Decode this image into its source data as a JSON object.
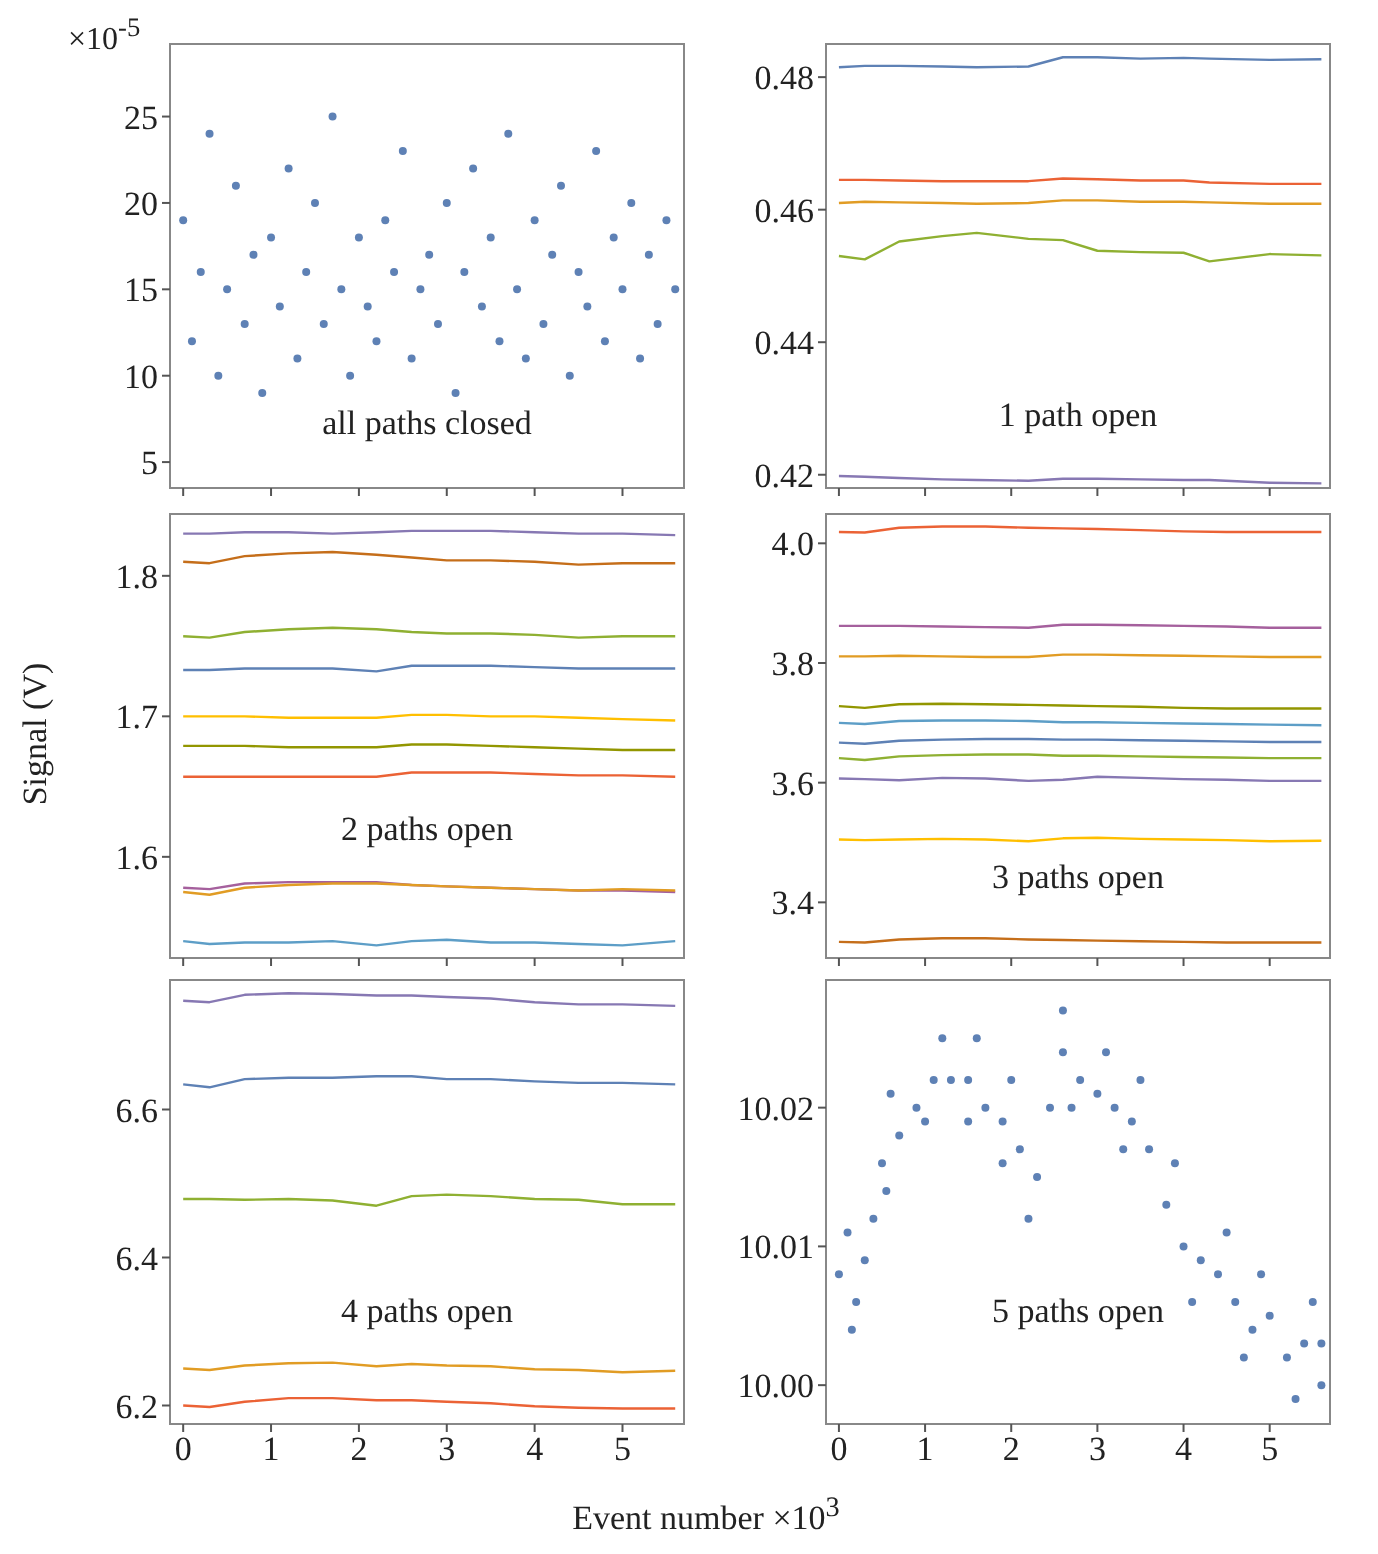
{
  "chart_data": [
    {
      "type": "scatter",
      "title": "all paths closed",
      "annotations": [
        "×10$^{-5}$"
      ],
      "marker": "circle",
      "xlim": [
        -0.15,
        5.7
      ],
      "xticks": [
        0,
        1,
        2,
        3,
        4,
        5
      ],
      "ylim": [
        3.5,
        29.2
      ],
      "yticks": [
        5,
        10,
        15,
        20,
        25
      ],
      "tick_labels": "y",
      "series": [
        {
          "color": "#5e81b5",
          "x": [
            0,
            0.1,
            0.2,
            0.3,
            0.4,
            0.5,
            0.6,
            0.7,
            0.8,
            0.9,
            1,
            1.1,
            1.2,
            1.3,
            1.4,
            1.5,
            1.6,
            1.7,
            1.8,
            1.9,
            2,
            2.1,
            2.2,
            2.3,
            2.4,
            2.5,
            2.6,
            2.7,
            2.8,
            2.9,
            3,
            3.1,
            3.2,
            3.3,
            3.4,
            3.5,
            3.6,
            3.7,
            3.8,
            3.9,
            4,
            4.1,
            4.2,
            4.3,
            4.4,
            4.5,
            4.6,
            4.7,
            4.8,
            4.9,
            5,
            5.1,
            5.2,
            5.3,
            5.4,
            5.5,
            5.6
          ],
          "values": [
            19,
            12,
            16,
            24,
            10,
            15,
            21,
            13,
            17,
            9,
            18,
            14,
            22,
            11,
            16,
            20,
            13,
            25,
            15,
            10,
            18,
            14,
            12,
            19,
            16,
            23,
            11,
            15,
            17,
            13,
            20,
            9,
            16,
            22,
            14,
            18,
            12,
            24,
            15,
            11,
            19,
            13,
            17,
            21,
            10,
            16,
            14,
            23,
            12,
            18,
            15,
            20,
            11,
            17,
            13,
            19,
            15
          ]
        }
      ]
    },
    {
      "type": "line",
      "title": "1 path open",
      "xlim": [
        -0.15,
        5.7
      ],
      "xticks": [
        0,
        1,
        2,
        3,
        4,
        5
      ],
      "ylim": [
        0.418,
        0.485
      ],
      "yticks": [
        0.42,
        0.44,
        0.46,
        0.48
      ],
      "tick_labels": "y",
      "line_style": "solid",
      "x": [
        0,
        0.3,
        0.7,
        1.2,
        1.6,
        2.2,
        2.6,
        3.0,
        3.5,
        4.0,
        4.3,
        5.0,
        5.6
      ],
      "series": [
        {
          "color": "#5e81b5",
          "values": [
            0.4815,
            0.4817,
            0.4817,
            0.4816,
            0.4815,
            0.4816,
            0.483,
            0.483,
            0.4828,
            0.4829,
            0.4828,
            0.4826,
            0.4827
          ]
        },
        {
          "color": "#eb6235",
          "values": [
            0.4645,
            0.4645,
            0.4644,
            0.4643,
            0.4643,
            0.4643,
            0.4647,
            0.4646,
            0.4644,
            0.4644,
            0.4641,
            0.4639,
            0.4639
          ]
        },
        {
          "color": "#e19c24",
          "values": [
            0.461,
            0.4612,
            0.4611,
            0.461,
            0.4609,
            0.461,
            0.4614,
            0.4614,
            0.4612,
            0.4612,
            0.4611,
            0.4609,
            0.4609
          ]
        },
        {
          "color": "#8fb032",
          "values": [
            0.453,
            0.4525,
            0.4552,
            0.456,
            0.4565,
            0.4556,
            0.4554,
            0.4538,
            0.4536,
            0.4535,
            0.4522,
            0.4533,
            0.4531
          ]
        },
        {
          "color": "#8778b3",
          "values": [
            0.4198,
            0.4197,
            0.4195,
            0.4193,
            0.4192,
            0.4191,
            0.4194,
            0.4194,
            0.4193,
            0.4192,
            0.4192,
            0.4188,
            0.4187
          ]
        }
      ]
    },
    {
      "type": "line",
      "title": "2 paths open",
      "ylabel": "Signal (V)",
      "xlim": [
        -0.15,
        5.7
      ],
      "xticks": [
        0,
        1,
        2,
        3,
        4,
        5
      ],
      "ylim": [
        1.528,
        1.844
      ],
      "yticks": [
        1.6,
        1.7,
        1.8
      ],
      "tick_labels": "y",
      "line_style": "solid",
      "x": [
        0,
        0.3,
        0.7,
        1.2,
        1.7,
        2.2,
        2.6,
        3.0,
        3.5,
        4.0,
        4.5,
        5.0,
        5.6
      ],
      "series": [
        {
          "color": "#8778b3",
          "values": [
            1.83,
            1.83,
            1.831,
            1.831,
            1.83,
            1.831,
            1.832,
            1.832,
            1.832,
            1.831,
            1.83,
            1.83,
            1.829
          ]
        },
        {
          "color": "#c56e1a",
          "values": [
            1.81,
            1.809,
            1.814,
            1.816,
            1.817,
            1.815,
            1.813,
            1.811,
            1.811,
            1.81,
            1.808,
            1.809,
            1.809
          ]
        },
        {
          "color": "#8fb032",
          "values": [
            1.757,
            1.756,
            1.76,
            1.762,
            1.763,
            1.762,
            1.76,
            1.759,
            1.759,
            1.758,
            1.756,
            1.757,
            1.757
          ]
        },
        {
          "color": "#5e81b5",
          "values": [
            1.733,
            1.733,
            1.734,
            1.734,
            1.734,
            1.732,
            1.736,
            1.736,
            1.736,
            1.735,
            1.734,
            1.734,
            1.734
          ]
        },
        {
          "color": "#ffbf00",
          "values": [
            1.7,
            1.7,
            1.7,
            1.699,
            1.699,
            1.699,
            1.701,
            1.701,
            1.7,
            1.7,
            1.699,
            1.698,
            1.697
          ]
        },
        {
          "color": "#929600",
          "values": [
            1.679,
            1.679,
            1.679,
            1.678,
            1.678,
            1.678,
            1.68,
            1.68,
            1.679,
            1.678,
            1.677,
            1.676,
            1.676
          ]
        },
        {
          "color": "#eb6235",
          "values": [
            1.657,
            1.657,
            1.657,
            1.657,
            1.657,
            1.657,
            1.66,
            1.66,
            1.66,
            1.659,
            1.658,
            1.658,
            1.657
          ]
        },
        {
          "color": "#a5609d",
          "values": [
            1.578,
            1.577,
            1.581,
            1.582,
            1.582,
            1.582,
            1.58,
            1.579,
            1.578,
            1.577,
            1.576,
            1.576,
            1.575
          ]
        },
        {
          "color": "#e19c24",
          "values": [
            1.575,
            1.573,
            1.578,
            1.58,
            1.581,
            1.581,
            1.58,
            1.579,
            1.578,
            1.577,
            1.576,
            1.577,
            1.576
          ]
        },
        {
          "color": "#5d9ec7",
          "values": [
            1.54,
            1.538,
            1.539,
            1.539,
            1.54,
            1.537,
            1.54,
            1.541,
            1.539,
            1.539,
            1.538,
            1.537,
            1.54
          ]
        }
      ]
    },
    {
      "type": "line",
      "title": "3 paths open",
      "xlim": [
        -0.15,
        5.7
      ],
      "xticks": [
        0,
        1,
        2,
        3,
        4,
        5
      ],
      "ylim": [
        3.307,
        4.049
      ],
      "yticks": [
        3.4,
        3.6,
        3.8,
        {
          "value": 4,
          "label": "4.0"
        }
      ],
      "tick_labels": "y",
      "line_style": "solid",
      "x": [
        0,
        0.3,
        0.7,
        1.2,
        1.7,
        2.2,
        2.6,
        3.0,
        3.5,
        4.0,
        4.5,
        5.0,
        5.6
      ],
      "series": [
        {
          "color": "#eb6235",
          "values": [
            4.019,
            4.018,
            4.026,
            4.028,
            4.028,
            4.026,
            4.025,
            4.024,
            4.022,
            4.02,
            4.019,
            4.019,
            4.019
          ]
        },
        {
          "color": "#a5609d",
          "values": [
            3.862,
            3.862,
            3.862,
            3.861,
            3.86,
            3.859,
            3.864,
            3.864,
            3.863,
            3.862,
            3.861,
            3.859,
            3.859
          ]
        },
        {
          "color": "#e19c24",
          "values": [
            3.811,
            3.811,
            3.812,
            3.811,
            3.81,
            3.81,
            3.814,
            3.814,
            3.813,
            3.812,
            3.811,
            3.81,
            3.81
          ]
        },
        {
          "color": "#929600",
          "values": [
            3.728,
            3.725,
            3.731,
            3.732,
            3.731,
            3.73,
            3.729,
            3.728,
            3.727,
            3.725,
            3.724,
            3.724,
            3.724
          ]
        },
        {
          "color": "#5d9ec7",
          "values": [
            3.7,
            3.698,
            3.703,
            3.704,
            3.704,
            3.703,
            3.701,
            3.701,
            3.7,
            3.699,
            3.698,
            3.697,
            3.696
          ]
        },
        {
          "color": "#5e81b5",
          "values": [
            3.667,
            3.665,
            3.67,
            3.672,
            3.673,
            3.673,
            3.672,
            3.672,
            3.671,
            3.67,
            3.669,
            3.668,
            3.668
          ]
        },
        {
          "color": "#8fb032",
          "values": [
            3.641,
            3.638,
            3.644,
            3.646,
            3.647,
            3.647,
            3.645,
            3.645,
            3.644,
            3.643,
            3.642,
            3.641,
            3.641
          ]
        },
        {
          "color": "#8778b3",
          "values": [
            3.607,
            3.606,
            3.604,
            3.608,
            3.607,
            3.603,
            3.605,
            3.61,
            3.608,
            3.606,
            3.605,
            3.603,
            3.603
          ]
        },
        {
          "color": "#ffbf00",
          "values": [
            3.505,
            3.504,
            3.505,
            3.506,
            3.505,
            3.502,
            3.507,
            3.508,
            3.506,
            3.505,
            3.504,
            3.502,
            3.503
          ]
        },
        {
          "color": "#c56e1a",
          "values": [
            3.334,
            3.333,
            3.338,
            3.34,
            3.34,
            3.338,
            3.337,
            3.336,
            3.335,
            3.334,
            3.333,
            3.333,
            3.333
          ]
        }
      ]
    },
    {
      "type": "line",
      "title": "4 paths open",
      "xlabel": "Event number ×10$^{3}$",
      "xlim": [
        -0.15,
        5.7
      ],
      "xticks": [
        0,
        1,
        2,
        3,
        4,
        5
      ],
      "ylim": [
        6.175,
        6.775
      ],
      "yticks": [
        6.2,
        6.4,
        6.6
      ],
      "line_style": "solid",
      "x": [
        0,
        0.3,
        0.7,
        1.2,
        1.7,
        2.2,
        2.6,
        3.0,
        3.5,
        4.0,
        4.5,
        5.0,
        5.6
      ],
      "series": [
        {
          "color": "#8778b3",
          "values": [
            6.747,
            6.745,
            6.755,
            6.757,
            6.756,
            6.754,
            6.754,
            6.752,
            6.75,
            6.745,
            6.742,
            6.742,
            6.74
          ]
        },
        {
          "color": "#5e81b5",
          "values": [
            6.634,
            6.63,
            6.641,
            6.643,
            6.643,
            6.645,
            6.645,
            6.641,
            6.641,
            6.638,
            6.636,
            6.636,
            6.634
          ]
        },
        {
          "color": "#8fb032",
          "values": [
            6.479,
            6.479,
            6.478,
            6.479,
            6.477,
            6.47,
            6.483,
            6.485,
            6.483,
            6.479,
            6.478,
            6.472,
            6.472
          ]
        },
        {
          "color": "#e19c24",
          "values": [
            6.25,
            6.248,
            6.254,
            6.257,
            6.258,
            6.253,
            6.256,
            6.254,
            6.253,
            6.249,
            6.248,
            6.245,
            6.247
          ]
        },
        {
          "color": "#eb6235",
          "values": [
            6.2,
            6.198,
            6.205,
            6.21,
            6.21,
            6.207,
            6.207,
            6.205,
            6.203,
            6.199,
            6.197,
            6.196,
            6.196
          ]
        }
      ]
    },
    {
      "type": "scatter",
      "title": "5 paths open",
      "marker": "circle",
      "xlim": [
        -0.15,
        5.7
      ],
      "xticks": [
        0,
        1,
        2,
        3,
        4,
        5
      ],
      "ylim": [
        9.9972,
        10.0292
      ],
      "yticks": [
        {
          "value": 10,
          "label": "10.00"
        },
        10.01,
        10.02
      ],
      "series": [
        {
          "color": "#5e81b5",
          "x": [
            0,
            0.1,
            0.15,
            0.2,
            0.3,
            0.4,
            0.5,
            0.55,
            0.6,
            0.7,
            0.9,
            1.0,
            1.1,
            1.2,
            1.3,
            1.5,
            1.5,
            1.6,
            1.7,
            1.9,
            1.9,
            2.0,
            2.1,
            2.2,
            2.3,
            2.45,
            2.6,
            2.6,
            2.7,
            2.8,
            3.0,
            3.1,
            3.2,
            3.3,
            3.4,
            3.5,
            3.6,
            3.8,
            3.9,
            4.0,
            4.1,
            4.2,
            4.4,
            4.5,
            4.6,
            4.7,
            4.8,
            4.9,
            5.0,
            5.2,
            5.3,
            5.4,
            5.5,
            5.6,
            5.6
          ],
          "values": [
            10.008,
            10.011,
            10.004,
            10.006,
            10.009,
            10.012,
            10.016,
            10.014,
            10.021,
            10.018,
            10.02,
            10.019,
            10.022,
            10.025,
            10.022,
            10.022,
            10.019,
            10.025,
            10.02,
            10.019,
            10.016,
            10.022,
            10.017,
            10.012,
            10.015,
            10.02,
            10.024,
            10.027,
            10.02,
            10.022,
            10.021,
            10.024,
            10.02,
            10.017,
            10.019,
            10.022,
            10.017,
            10.013,
            10.016,
            10.01,
            10.006,
            10.009,
            10.008,
            10.011,
            10.006,
            10.002,
            10.004,
            10.008,
            10.005,
            10.002,
            9.999,
            10.003,
            10.006,
            10.003,
            10.0
          ]
        }
      ]
    }
  ]
}
